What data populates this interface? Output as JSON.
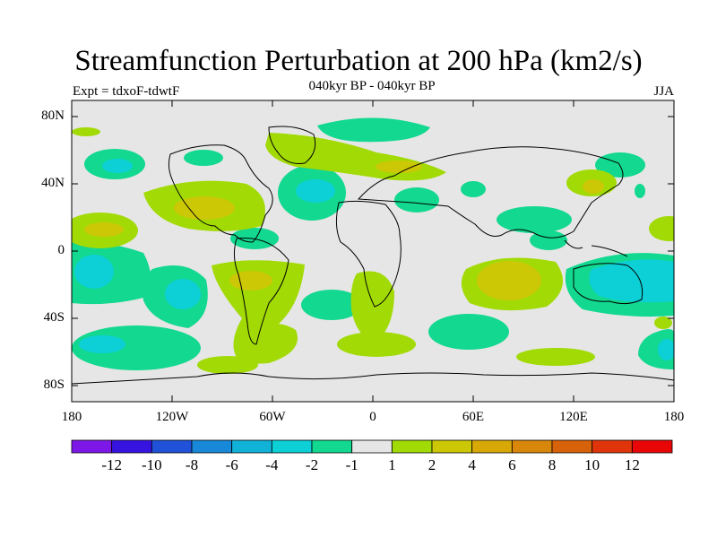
{
  "title": "Streamfunction Perturbation at 200 hPa (km2/s)",
  "subtitle": "040kyr BP - 040kyr BP",
  "expt_label": "Expt = tdxoF-tdwtF",
  "season": "JJA",
  "map": {
    "lat_ticks": [
      "80N",
      "40N",
      "0",
      "40S",
      "80S"
    ],
    "lon_ticks": [
      "180",
      "120W",
      "60W",
      "0",
      "60E",
      "120E",
      "180"
    ]
  },
  "colorbar": {
    "colors": [
      "#7d17e8",
      "#3713e0",
      "#1f52d8",
      "#1889d8",
      "#10b2d8",
      "#0cd0d6",
      "#12d890",
      "#e6e6e6",
      "#a2da06",
      "#ccc806",
      "#d8a806",
      "#d8870a",
      "#d8620a",
      "#e0350a",
      "#e80606"
    ],
    "labels": [
      "-12",
      "-10",
      "-8",
      "-6",
      "-4",
      "-2",
      "-1",
      "1",
      "2",
      "4",
      "6",
      "8",
      "10",
      "12"
    ]
  },
  "colors": {
    "background": "#e6e6e6",
    "neg1": "#12d890",
    "neg2": "#0cd0d6",
    "pos1": "#a2da06",
    "pos2": "#ccc806"
  }
}
